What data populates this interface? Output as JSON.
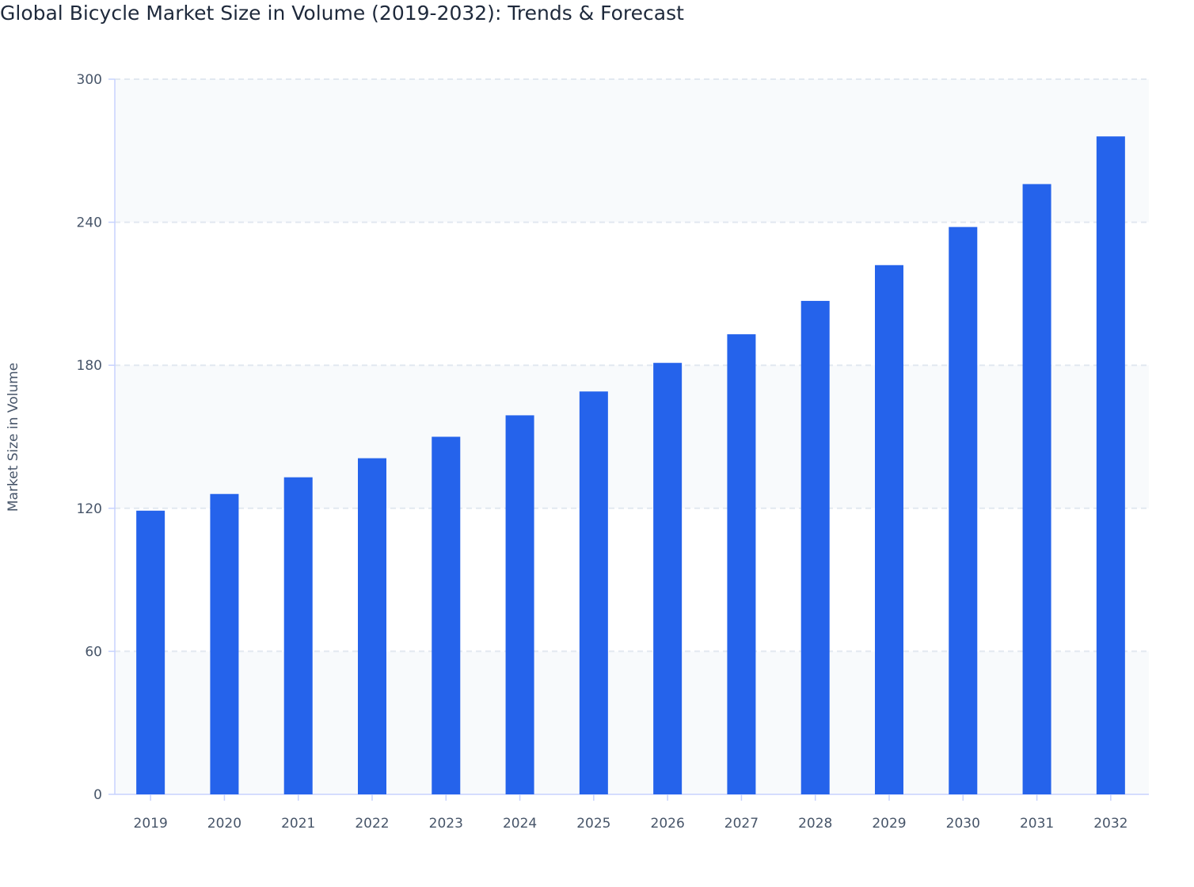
{
  "chart_data": {
    "type": "bar",
    "title": "Global Bicycle Market Size in Volume (2019-2032): Trends & Forecast",
    "xlabel": "",
    "ylabel": "Market Size in Volume",
    "categories": [
      "2019",
      "2020",
      "2021",
      "2022",
      "2023",
      "2024",
      "2025",
      "2026",
      "2027",
      "2028",
      "2029",
      "2030",
      "2031",
      "2032"
    ],
    "values": [
      119,
      126,
      133,
      141,
      150,
      159,
      169,
      181,
      193,
      207,
      222,
      238,
      256,
      276
    ],
    "ylim": [
      0,
      300
    ],
    "yticks": [
      0,
      60,
      120,
      180,
      240,
      300
    ],
    "grid": true,
    "legend": "none",
    "colors": {
      "bar": "#2563eb",
      "band": "#f8fafc",
      "grid": "#e2e8f0",
      "axis": "#c7d2fe"
    }
  }
}
